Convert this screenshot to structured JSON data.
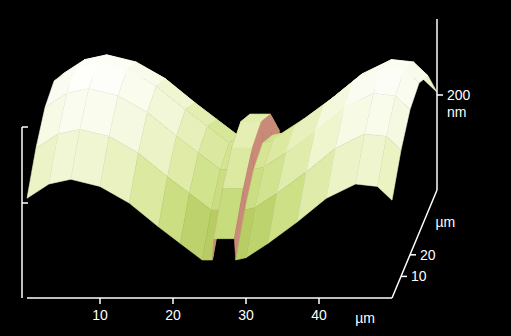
{
  "chart_data": {
    "type": "surface",
    "xlabel": "µm",
    "ylabel": "µm",
    "zlabel": "nm",
    "x": [
      0,
      3,
      6,
      10,
      14,
      18,
      21,
      24,
      25.4,
      25.6,
      28.4,
      28.6,
      30,
      33,
      37,
      41,
      45,
      48,
      50
    ],
    "y": [
      0,
      10,
      20,
      30,
      40,
      50
    ],
    "z": [
      [
        210,
        240,
        250,
        235,
        200,
        150,
        115,
        80,
        80,
        125,
        125,
        80,
        85,
        115,
        160,
        210,
        240,
        235,
        206
      ],
      [
        270,
        300,
        310,
        295,
        260,
        210,
        175,
        140,
        140,
        185,
        185,
        140,
        145,
        175,
        220,
        270,
        300,
        295,
        266
      ],
      [
        310,
        340,
        350,
        335,
        300,
        250,
        215,
        180,
        180,
        225,
        225,
        180,
        185,
        215,
        260,
        310,
        340,
        335,
        306
      ],
      [
        320,
        350,
        360,
        345,
        310,
        260,
        225,
        190,
        190,
        235,
        235,
        190,
        195,
        225,
        270,
        320,
        350,
        345,
        316
      ],
      [
        290,
        320,
        330,
        315,
        280,
        230,
        195,
        160,
        160,
        205,
        205,
        160,
        165,
        195,
        240,
        290,
        320,
        315,
        286
      ],
      [
        210,
        240,
        250,
        235,
        200,
        150,
        115,
        80,
        80,
        125,
        125,
        80,
        85,
        115,
        160,
        210,
        240,
        235,
        206
      ]
    ],
    "xlim": [
      0,
      50
    ],
    "xticks": [
      10,
      20,
      30,
      40
    ],
    "ylim": [
      0,
      50
    ],
    "yticks": [
      10,
      20
    ],
    "zlim": [
      0,
      360
    ],
    "zticks": [
      200
    ],
    "grid": false
  }
}
